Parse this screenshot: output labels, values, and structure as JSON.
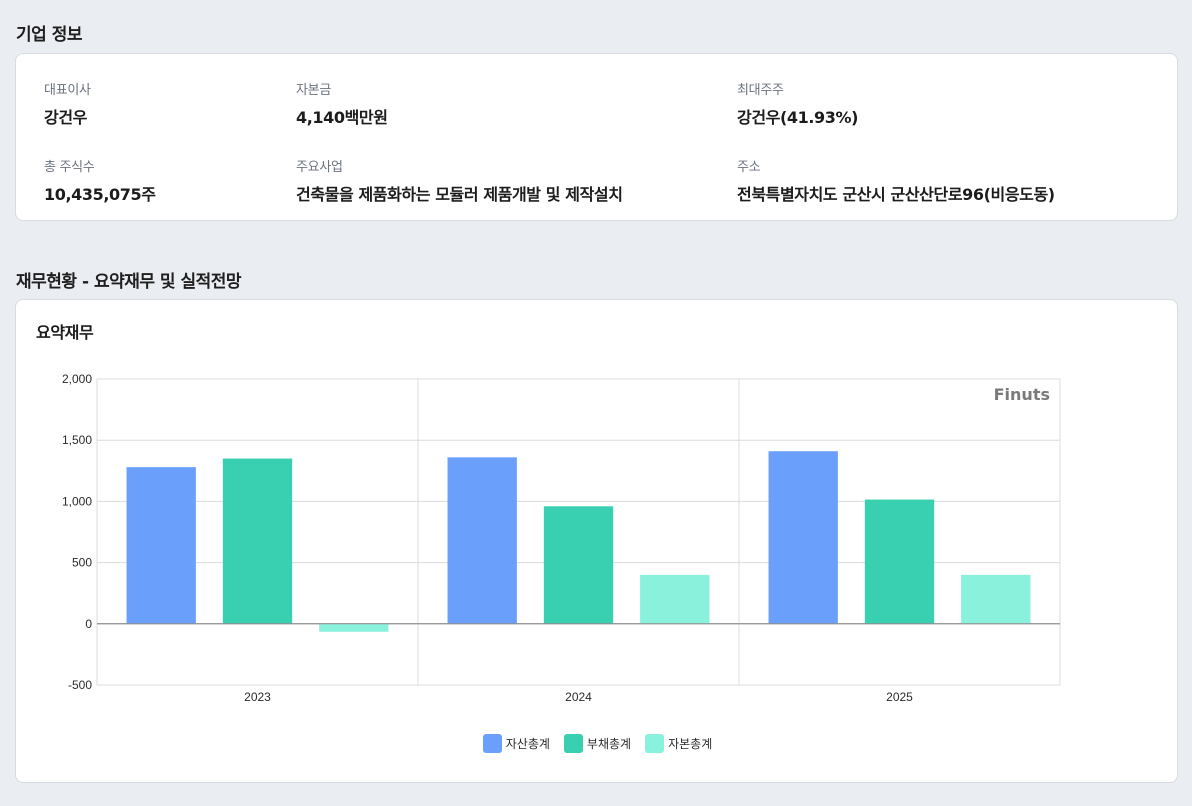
{
  "company_info": {
    "title": "기업 정보",
    "fields": [
      {
        "label": "대표이사",
        "value": "강건우"
      },
      {
        "label": "자본금",
        "value": "4,140백만원"
      },
      {
        "label": "최대주주",
        "value": "강건우(41.93%)"
      },
      {
        "label": "총 주식수",
        "value": "10,435,075주"
      },
      {
        "label": "주요사업",
        "value": "건축물을 제품화하는 모듈러 제품개발 및 제작설치"
      },
      {
        "label": "주소",
        "value": "전북특별자치도 군산시 군산산단로96(비응도동)"
      }
    ]
  },
  "financial": {
    "title": "재무현황 - 요약재무 및 실적전망",
    "subtitle": "요약재무",
    "watermark": "Finuts"
  },
  "chart_data": {
    "type": "bar",
    "categories": [
      "2023",
      "2024",
      "2025"
    ],
    "series": [
      {
        "name": "자산총계",
        "values": [
          1280,
          1360,
          1410
        ],
        "color": "#6aa0fb"
      },
      {
        "name": "부채총계",
        "values": [
          1350,
          960,
          1015
        ],
        "color": "#38d0b0"
      },
      {
        "name": "자본총계",
        "values": [
          -65,
          400,
          400
        ],
        "color": "#8af1dc"
      }
    ],
    "ylim": [
      -500,
      2000
    ],
    "yticks": [
      "2,000",
      "1,500",
      "1,000",
      "500",
      "0",
      "-500"
    ],
    "ytick_values": [
      2000,
      1500,
      1000,
      500,
      0,
      -500
    ],
    "grid": true,
    "legend_position": "bottom-center",
    "xlabel": "",
    "ylabel": ""
  }
}
